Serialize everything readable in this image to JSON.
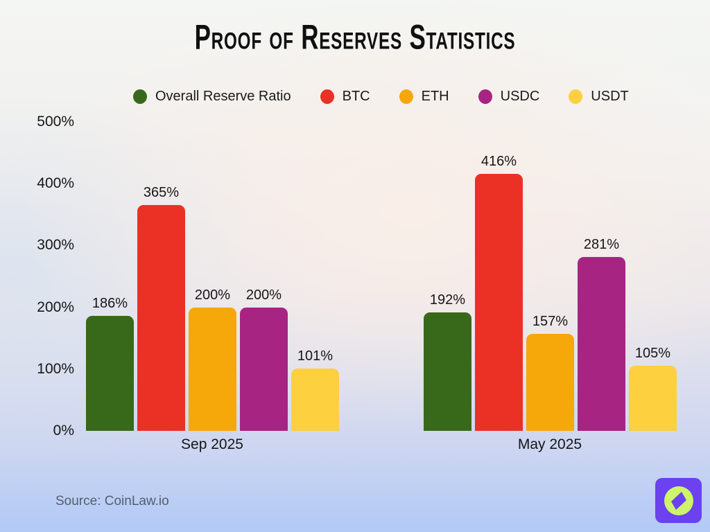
{
  "title": "Proof of Reserves Statistics",
  "source_credit": "Source: CoinLaw.io",
  "logo": {
    "icon": "compass-icon",
    "background_color": "#6B41F0",
    "compass_color": "#CDF46B"
  },
  "chart_data": {
    "type": "bar",
    "title": "Proof of Reserves Statistics",
    "categories": [
      "Sep 2025",
      "May 2025"
    ],
    "series": [
      {
        "name": "Overall Reserve Ratio",
        "color": "#38691A",
        "values": [
          186,
          192
        ]
      },
      {
        "name": "BTC",
        "color": "#EB3125",
        "values": [
          365,
          416
        ]
      },
      {
        "name": "ETH",
        "color": "#F6A70A",
        "values": [
          200,
          157
        ]
      },
      {
        "name": "USDC",
        "color": "#A72483",
        "values": [
          200,
          281
        ]
      },
      {
        "name": "USDT",
        "color": "#FDD03F",
        "values": [
          101,
          105
        ]
      }
    ],
    "value_suffix": "%",
    "data_labels": true,
    "ylim": [
      0,
      500
    ],
    "yticks": [
      0,
      100,
      200,
      300,
      400,
      500
    ],
    "ytick_labels": [
      "0%",
      "100%",
      "200%",
      "300%",
      "400%",
      "500%"
    ],
    "grid": false,
    "legend_position": "top"
  }
}
